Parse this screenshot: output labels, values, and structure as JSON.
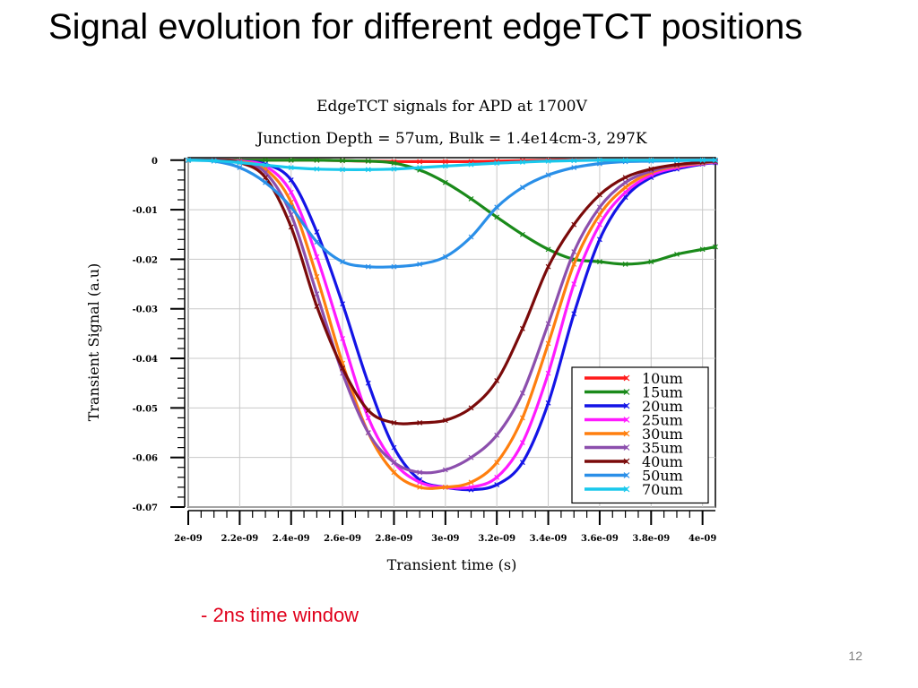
{
  "slide": {
    "title": "Signal evolution for different edgeTCT positions",
    "note": "- 2ns time window",
    "page_number": "12"
  },
  "chart_data": {
    "type": "line",
    "title": "EdgeTCT signals for APD at 1700V",
    "subtitle": "Junction Depth = 57um, Bulk = 1.4e14cm-3, 297K",
    "xlabel": "Transient time (s)",
    "ylabel": "Transient Signal (a.u)",
    "xlim": [
      2e-09,
      4.05e-09
    ],
    "ylim": [
      -0.07,
      0.0005
    ],
    "x_ticks": [
      2e-09,
      2.2e-09,
      2.4e-09,
      2.6e-09,
      2.8e-09,
      3e-09,
      3.2e-09,
      3.4e-09,
      3.6e-09,
      3.8e-09,
      4e-09
    ],
    "x_tick_labels": [
      "2e-09",
      "2.2e-09",
      "2.4e-09",
      "2.6e-09",
      "2.8e-09",
      "3e-09",
      "3.2e-09",
      "3.4e-09",
      "3.6e-09",
      "3.8e-09",
      "4e-09"
    ],
    "y_ticks": [
      0,
      -0.01,
      -0.02,
      -0.03,
      -0.04,
      -0.05,
      -0.06,
      -0.07
    ],
    "y_tick_labels": [
      "0",
      "-0.01",
      "-0.02",
      "-0.03",
      "-0.04",
      "-0.05",
      "-0.06",
      "-0.07"
    ],
    "grid": true,
    "legend_position": "bottom-right",
    "x": [
      2e-09,
      2.1e-09,
      2.2e-09,
      2.3e-09,
      2.4e-09,
      2.5e-09,
      2.6e-09,
      2.7e-09,
      2.8e-09,
      2.9e-09,
      3e-09,
      3.1e-09,
      3.2e-09,
      3.3e-09,
      3.4e-09,
      3.5e-09,
      3.6e-09,
      3.7e-09,
      3.8e-09,
      3.9e-09,
      4e-09,
      4.05e-09
    ],
    "series": [
      {
        "name": "10um",
        "color": "#ff1a1a",
        "values": [
          0,
          0,
          0,
          0,
          0,
          0,
          -0.0001,
          -0.0002,
          -0.0003,
          -0.0003,
          -0.0003,
          -0.0003,
          -0.0002,
          -0.0001,
          0,
          0,
          0,
          0,
          0,
          0,
          0,
          0
        ]
      },
      {
        "name": "15um",
        "color": "#1a8a1a",
        "values": [
          0,
          0,
          0,
          0,
          0,
          0,
          -0.0001,
          -0.0002,
          -0.0006,
          -0.002,
          -0.0045,
          -0.0078,
          -0.0115,
          -0.015,
          -0.018,
          -0.02,
          -0.0205,
          -0.021,
          -0.0205,
          -0.019,
          -0.018,
          -0.0175
        ]
      },
      {
        "name": "20um",
        "color": "#1414e6",
        "values": [
          0,
          0,
          -0.0002,
          -0.0008,
          -0.004,
          -0.0145,
          -0.029,
          -0.045,
          -0.058,
          -0.0645,
          -0.066,
          -0.0665,
          -0.0655,
          -0.061,
          -0.049,
          -0.031,
          -0.016,
          -0.0075,
          -0.0035,
          -0.0018,
          -0.0008,
          -0.0005
        ]
      },
      {
        "name": "25um",
        "color": "#ff1aff",
        "values": [
          0,
          0,
          -0.0002,
          -0.0012,
          -0.0065,
          -0.0195,
          -0.036,
          -0.052,
          -0.061,
          -0.065,
          -0.066,
          -0.066,
          -0.064,
          -0.057,
          -0.043,
          -0.025,
          -0.013,
          -0.0065,
          -0.003,
          -0.0015,
          -0.0007,
          -0.0004
        ]
      },
      {
        "name": "30um",
        "color": "#ff7f0e",
        "values": [
          0,
          0,
          -0.0003,
          -0.0018,
          -0.0085,
          -0.0235,
          -0.041,
          -0.055,
          -0.063,
          -0.066,
          -0.066,
          -0.065,
          -0.061,
          -0.052,
          -0.037,
          -0.021,
          -0.011,
          -0.0055,
          -0.0025,
          -0.0012,
          -0.0006,
          -0.0003
        ]
      },
      {
        "name": "35um",
        "color": "#8c4fad",
        "values": [
          0,
          0,
          -0.0004,
          -0.0025,
          -0.011,
          -0.027,
          -0.043,
          -0.055,
          -0.061,
          -0.063,
          -0.0625,
          -0.06,
          -0.0555,
          -0.047,
          -0.033,
          -0.0185,
          -0.0095,
          -0.0045,
          -0.0022,
          -0.001,
          -0.0005,
          -0.0003
        ]
      },
      {
        "name": "40um",
        "color": "#7a0a0a",
        "values": [
          0,
          0,
          -0.0005,
          -0.0035,
          -0.0135,
          -0.0295,
          -0.042,
          -0.0505,
          -0.053,
          -0.053,
          -0.0525,
          -0.05,
          -0.0445,
          -0.034,
          -0.0215,
          -0.013,
          -0.007,
          -0.0035,
          -0.0018,
          -0.0009,
          -0.0004,
          -0.0002
        ]
      },
      {
        "name": "50um",
        "color": "#2a8fe8",
        "values": [
          0,
          -0.0002,
          -0.0015,
          -0.0045,
          -0.0095,
          -0.0165,
          -0.0205,
          -0.0215,
          -0.0215,
          -0.021,
          -0.0195,
          -0.0155,
          -0.0095,
          -0.0055,
          -0.003,
          -0.0015,
          -0.0007,
          -0.0003,
          -0.0002,
          -0.0001,
          0,
          0
        ]
      },
      {
        "name": "70um",
        "color": "#19c8ec",
        "values": [
          0,
          -0.0001,
          -0.0005,
          -0.001,
          -0.0015,
          -0.0018,
          -0.0019,
          -0.0019,
          -0.0018,
          -0.0015,
          -0.0012,
          -0.0009,
          -0.0006,
          -0.0004,
          -0.0002,
          -0.0001,
          0,
          0,
          0,
          0,
          0,
          0
        ]
      }
    ]
  }
}
